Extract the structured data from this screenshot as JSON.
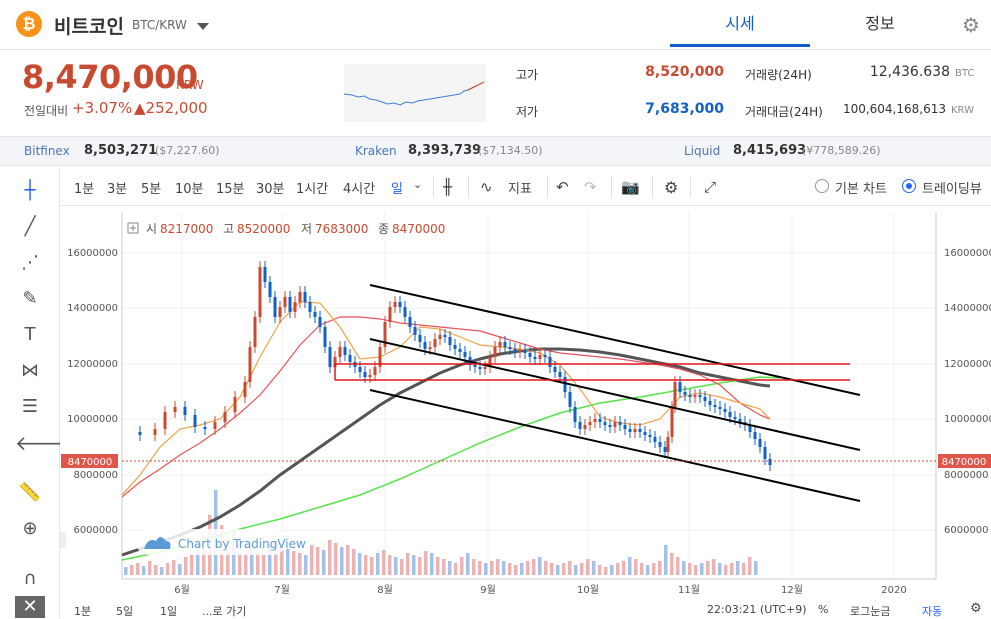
{
  "header": {
    "coin_logo": "₿",
    "coin_name": "비트코인",
    "coin_pair": "BTC/KRW",
    "tab_quote": "시세",
    "tab_info": "정보",
    "settings_icon": "gear-icon"
  },
  "price": {
    "current": "8,470,000",
    "unit": "KRW",
    "prev_label": "전일대비",
    "change_pct": "+3.07%",
    "change_abs": "▲252,000"
  },
  "stats": {
    "high_label": "고가",
    "high": "8,520,000",
    "low_label": "저가",
    "low": "7,683,000",
    "volume_label": "거래량(24H)",
    "volume": "12,436.638",
    "volume_unit": "BTC",
    "amount_label": "거래대금(24H)",
    "amount": "100,604,168,613",
    "amount_unit": "KRW"
  },
  "exchanges": [
    {
      "name": "Bitfinex",
      "price": "8,503,271",
      "sub": "($7,227.60)"
    },
    {
      "name": "Kraken",
      "price": "8,393,739",
      "sub": "($7,134.50)"
    },
    {
      "name": "Liquid",
      "price": "8,415,693",
      "sub": "(¥778,589.26)"
    }
  ],
  "toolbar": {
    "intervals": [
      "1분",
      "3분",
      "5분",
      "10분",
      "15분",
      "30분",
      "1시간",
      "4시간",
      "일"
    ],
    "indicators": "지표",
    "basic_chart": "기본 차트",
    "trading_view": "트레이딩뷰"
  },
  "ohlc": {
    "open_label": "시",
    "open": "8217000",
    "high_label": "고",
    "high": "8520000",
    "low_label": "저",
    "low": "7683000",
    "close_label": "종",
    "close": "8470000"
  },
  "watermark": "Chart by TradingView",
  "axis": {
    "y_ticks": [
      "16000000",
      "14000000",
      "12000000",
      "10000000",
      "8000000",
      "6000000"
    ],
    "x_ticks": [
      "6월",
      "7월",
      "8월",
      "9월",
      "10월",
      "11월",
      "12월",
      "2020"
    ],
    "current_tag": "8470000"
  },
  "bottom": {
    "ranges": [
      "1분",
      "5일",
      "1일"
    ],
    "goto": "...로 가기",
    "time": "22:03:21 (UTC+9)",
    "pct": "%",
    "log": "로그눈금",
    "auto": "자동"
  },
  "colors": {
    "up": "#c84a31",
    "down": "#1261c4",
    "accent": "#115dcb"
  }
}
